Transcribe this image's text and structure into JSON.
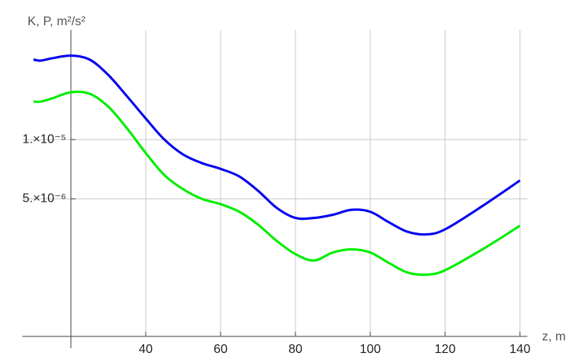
{
  "chart_data": {
    "type": "line",
    "y_label": "K, P, m²/s²",
    "x_label": "z, m",
    "x": [
      10,
      12,
      15,
      20,
      25,
      30,
      35,
      40,
      45,
      50,
      55,
      60,
      65,
      70,
      75,
      80,
      85,
      90,
      95,
      100,
      105,
      110,
      115,
      120,
      130,
      140
    ],
    "series": [
      {
        "color": "#0000ee",
        "values": [
          2.55e-05,
          2.52e-05,
          2.59e-05,
          2.67e-05,
          2.55e-05,
          2.13e-05,
          1.66e-05,
          1.28e-05,
          1e-05,
          8.4e-06,
          7.6e-06,
          7.1e-06,
          6.5e-06,
          5.5e-06,
          4.5e-06,
          4e-06,
          4e-06,
          4.15e-06,
          4.4e-06,
          4.3e-06,
          3.8e-06,
          3.4e-06,
          3.3e-06,
          3.5e-06,
          4.6e-06,
          6.2e-06
        ]
      },
      {
        "color": "#00ee00",
        "values": [
          1.56e-05,
          1.56e-05,
          1.62e-05,
          1.74e-05,
          1.71e-05,
          1.47e-05,
          1.14e-05,
          8.55e-06,
          6.6e-06,
          5.6e-06,
          5e-06,
          4.7e-06,
          4.3e-06,
          3.7e-06,
          3.06e-06,
          2.62e-06,
          2.43e-06,
          2.67e-06,
          2.77e-06,
          2.67e-06,
          2.36e-06,
          2.11e-06,
          2.06e-06,
          2.17e-06,
          2.77e-06,
          3.65e-06
        ]
      }
    ],
    "xlim": [
      7,
      142
    ],
    "ylim": [
      1e-06,
      3e-05
    ],
    "xticks": [
      40,
      60,
      80,
      100,
      120,
      140
    ],
    "yticks": [
      {
        "value": 1e-05,
        "label": "1.×10⁻⁵"
      },
      {
        "value": 5e-06,
        "label": "5.×10⁻⁶"
      }
    ],
    "log_y": true,
    "grid": true,
    "y_axis_position": 20
  }
}
